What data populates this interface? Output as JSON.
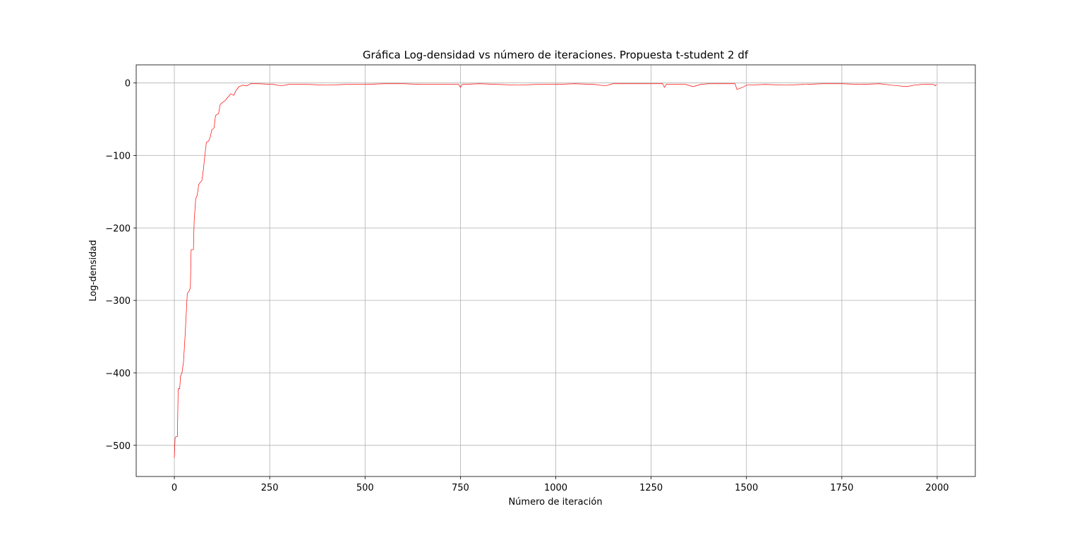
{
  "chart_data": {
    "type": "line",
    "title": "Gráfica Log-densidad vs número de iteraciones. Propuesta t-student 2 df",
    "x_label": "Número de iteración",
    "y_label": "Log-densidad",
    "x": [
      0,
      2,
      4,
      8,
      10,
      14,
      16,
      20,
      24,
      28,
      32,
      34,
      38,
      42,
      44,
      50,
      52,
      56,
      60,
      64,
      68,
      72,
      76,
      80,
      84,
      90,
      94,
      98,
      104,
      108,
      116,
      120,
      126,
      132,
      140,
      148,
      156,
      162,
      170,
      180,
      190,
      200,
      220,
      260,
      280,
      300,
      350,
      400,
      450,
      500,
      550,
      600,
      650,
      700,
      745,
      750,
      755,
      800,
      850,
      900,
      950,
      1000,
      1050,
      1100,
      1130,
      1150,
      1200,
      1250,
      1280,
      1285,
      1290,
      1340,
      1360,
      1380,
      1400,
      1470,
      1475,
      1490,
      1500,
      1550,
      1600,
      1650,
      1700,
      1750,
      1800,
      1850,
      1880,
      1920,
      1940,
      1960,
      1990,
      1995,
      1998
    ],
    "series": [
      {
        "color": "#ff0000",
        "values": [
          -517,
          -490,
          -488,
          -488,
          -422,
          -422,
          -405,
          -400,
          -385,
          -350,
          -310,
          -290,
          -288,
          -283,
          -230,
          -230,
          -190,
          -160,
          -155,
          -140,
          -137,
          -135,
          -120,
          -100,
          -82,
          -80,
          -75,
          -65,
          -62,
          -45,
          -42,
          -30,
          -27,
          -25,
          -20,
          -15,
          -17,
          -10,
          -5,
          -3,
          -4,
          -1,
          -1,
          -2,
          -4,
          -2,
          -2,
          -3,
          -2,
          -2,
          -1,
          -1,
          -2,
          -2,
          -2,
          -6,
          -2,
          -1,
          -2,
          -3,
          -2,
          -2,
          -1,
          -2,
          -4,
          -1,
          -1,
          -1,
          -1,
          -6,
          -2,
          -2,
          -5,
          -2,
          -1,
          -1,
          -9,
          -6,
          -3,
          -2,
          -3,
          -2,
          -1,
          -1,
          -2,
          -1,
          -3,
          -5,
          -3,
          -2,
          -2,
          -4,
          -2
        ]
      }
    ],
    "xlim": [
      -100,
      2100
    ],
    "ylim": [
      -543,
      25
    ],
    "xticks": [
      0,
      250,
      500,
      750,
      1000,
      1250,
      1500,
      1750,
      2000
    ],
    "yticks": [
      {
        "value": -500,
        "label": "−500"
      },
      {
        "value": -400,
        "label": "−400"
      },
      {
        "value": -300,
        "label": "−300"
      },
      {
        "value": -200,
        "label": "−200"
      },
      {
        "value": -100,
        "label": "−100"
      },
      0
    ],
    "grid": true
  }
}
